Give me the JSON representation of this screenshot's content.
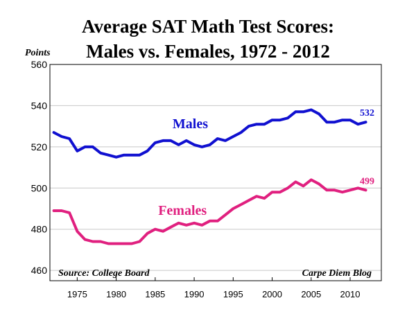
{
  "chart_data": {
    "type": "line",
    "title_line1": "Average SAT Math Test Scores:",
    "title_line2": "Males vs. Females, 1972 - 2012",
    "ylabel": "Points",
    "xlabel": "",
    "xlim": [
      1971.5,
      2014
    ],
    "ylim": [
      455,
      560
    ],
    "yticks": [
      460,
      480,
      500,
      520,
      540,
      560
    ],
    "xticks": [
      1975,
      1980,
      1985,
      1990,
      1995,
      2000,
      2005,
      2010
    ],
    "grid": "horizontal",
    "x": [
      1972,
      1973,
      1974,
      1975,
      1976,
      1977,
      1978,
      1979,
      1980,
      1981,
      1982,
      1983,
      1984,
      1985,
      1986,
      1987,
      1988,
      1989,
      1990,
      1991,
      1992,
      1993,
      1994,
      1995,
      1996,
      1997,
      1998,
      1999,
      2000,
      2001,
      2002,
      2003,
      2004,
      2005,
      2006,
      2007,
      2008,
      2009,
      2010,
      2011,
      2012
    ],
    "series": [
      {
        "name": "Males",
        "color": "#1010d0",
        "label_x": 1989.5,
        "label_y": 529,
        "end_label": "532",
        "values": [
          527,
          525,
          524,
          518,
          520,
          520,
          517,
          516,
          515,
          516,
          516,
          516,
          518,
          522,
          523,
          523,
          521,
          523,
          521,
          520,
          521,
          524,
          523,
          525,
          527,
          530,
          531,
          531,
          533,
          533,
          534,
          537,
          537,
          538,
          536,
          532,
          532,
          533,
          533,
          531,
          532
        ]
      },
      {
        "name": "Females",
        "color": "#e0207f",
        "label_x": 1988.5,
        "label_y": 487,
        "end_label": "499",
        "values": [
          489,
          489,
          488,
          479,
          475,
          474,
          474,
          473,
          473,
          473,
          473,
          474,
          478,
          480,
          479,
          481,
          483,
          482,
          483,
          482,
          484,
          484,
          487,
          490,
          492,
          494,
          496,
          495,
          498,
          498,
          500,
          503,
          501,
          504,
          502,
          499,
          499,
          498,
          499,
          500,
          499
        ]
      }
    ],
    "annotations": {
      "source": "Source: College Board",
      "credit": "Carpe Diem Blog"
    }
  }
}
